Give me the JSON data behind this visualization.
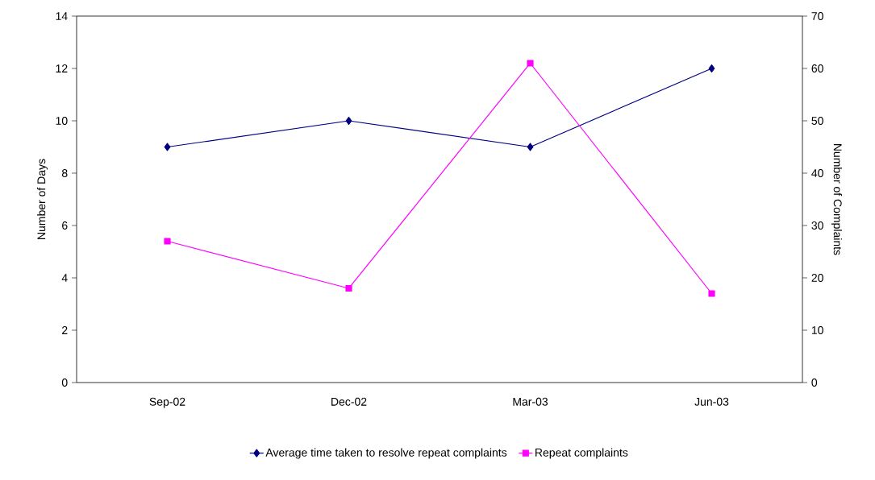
{
  "chart_data": {
    "type": "line",
    "categories": [
      "Sep-02",
      "Dec-02",
      "Mar-03",
      "Jun-03"
    ],
    "ylabel": "Number of Days",
    "y2label": "Number of Complaints",
    "ylim": [
      0,
      14
    ],
    "yticks": [
      0,
      2,
      4,
      6,
      8,
      10,
      12,
      14
    ],
    "y2lim": [
      0,
      70
    ],
    "y2ticks": [
      0,
      10,
      20,
      30,
      40,
      50,
      60,
      70
    ],
    "legend": "bottom",
    "grid": false,
    "series": [
      {
        "name": "Average time taken to resolve repeat complaints",
        "color": "#000080",
        "marker": "diamond",
        "values": [
          9,
          10,
          9,
          12
        ]
      },
      {
        "name": "Repeat complaints",
        "color": "#ff00ff",
        "marker": "square",
        "axis": "y2",
        "values": [
          27,
          18,
          61,
          17
        ]
      }
    ]
  }
}
